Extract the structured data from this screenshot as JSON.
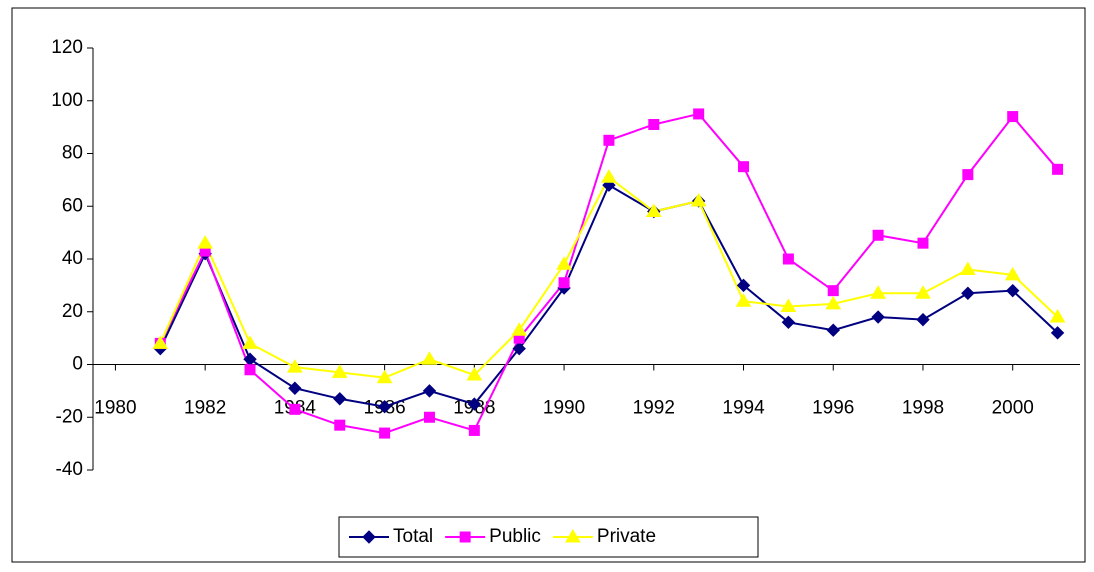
{
  "chart_data": {
    "type": "line",
    "x": [
      1981,
      1982,
      1983,
      1984,
      1985,
      1986,
      1987,
      1988,
      1989,
      1990,
      1991,
      1992,
      1993,
      1994,
      1995,
      1996,
      1997,
      1998,
      1999,
      2000,
      2001
    ],
    "series": [
      {
        "name": "Total",
        "color": "#000080",
        "marker": "diamond",
        "values": [
          6,
          42,
          2,
          -9,
          -13,
          -16,
          -10,
          -15,
          6,
          29,
          68,
          58,
          62,
          30,
          16,
          13,
          18,
          17,
          27,
          28,
          12
        ]
      },
      {
        "name": "Public",
        "color": "#ff00ff",
        "marker": "square",
        "values": [
          8,
          43,
          -2,
          -17,
          -23,
          -26,
          -20,
          -25,
          10,
          31,
          85,
          91,
          95,
          75,
          40,
          28,
          49,
          46,
          72,
          94,
          74
        ]
      },
      {
        "name": "Private",
        "color": "#ffff00",
        "marker": "triangle",
        "values": [
          8,
          46,
          8,
          -1,
          -3,
          -5,
          2,
          -4,
          13,
          38,
          71,
          58,
          62,
          24,
          22,
          23,
          27,
          27,
          36,
          34,
          18
        ]
      }
    ],
    "xlim": [
      1979.5,
      2001.5
    ],
    "xticks": [
      1980,
      1982,
      1984,
      1986,
      1988,
      1990,
      1992,
      1994,
      1996,
      1998,
      2000
    ],
    "ylim": [
      -40,
      120
    ],
    "yticks": [
      -40,
      -20,
      0,
      20,
      40,
      60,
      80,
      100,
      120
    ],
    "grid": false,
    "legend": "bottom"
  }
}
